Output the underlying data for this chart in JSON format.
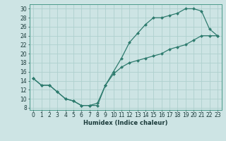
{
  "xlabel": "Humidex (Indice chaleur)",
  "xlim": [
    -0.5,
    23.5
  ],
  "ylim": [
    7.5,
    31
  ],
  "xticks": [
    0,
    1,
    2,
    3,
    4,
    5,
    6,
    7,
    8,
    9,
    10,
    11,
    12,
    13,
    14,
    15,
    16,
    17,
    18,
    19,
    20,
    21,
    22,
    23
  ],
  "yticks": [
    8,
    10,
    12,
    14,
    16,
    18,
    20,
    22,
    24,
    26,
    28,
    30
  ],
  "bg_color": "#cde4e4",
  "line_color": "#2e7b6e",
  "series1_x": [
    0,
    1,
    2,
    3,
    4,
    5,
    6,
    7,
    8,
    9,
    10,
    11,
    12,
    13,
    14,
    15,
    16,
    17,
    18,
    19,
    20,
    21,
    22,
    23
  ],
  "series1_y": [
    14.5,
    13.0,
    13.0,
    11.5,
    10.0,
    9.5,
    8.5,
    8.5,
    8.5,
    13.0,
    16.0,
    19.0,
    22.5,
    24.5,
    26.5,
    28.0,
    28.0,
    28.5,
    29.0,
    30.0,
    30.0,
    29.5,
    25.5,
    24.0
  ],
  "series2_x": [
    0,
    1,
    2,
    3,
    4,
    5,
    6,
    7,
    8,
    9,
    10,
    11,
    12,
    13,
    14,
    15,
    16,
    17,
    18,
    19,
    20,
    21,
    22,
    23
  ],
  "series2_y": [
    14.5,
    13.0,
    13.0,
    11.5,
    10.0,
    9.5,
    8.5,
    8.5,
    9.0,
    13.0,
    15.5,
    17.0,
    18.0,
    18.5,
    19.0,
    19.5,
    20.0,
    21.0,
    21.5,
    22.0,
    23.0,
    24.0,
    24.0,
    24.0
  ],
  "grid_color": "#aed0ce",
  "markersize": 2.0,
  "xlabel_fontsize": 6.0,
  "tick_fontsize": 5.5,
  "linewidth": 0.9
}
